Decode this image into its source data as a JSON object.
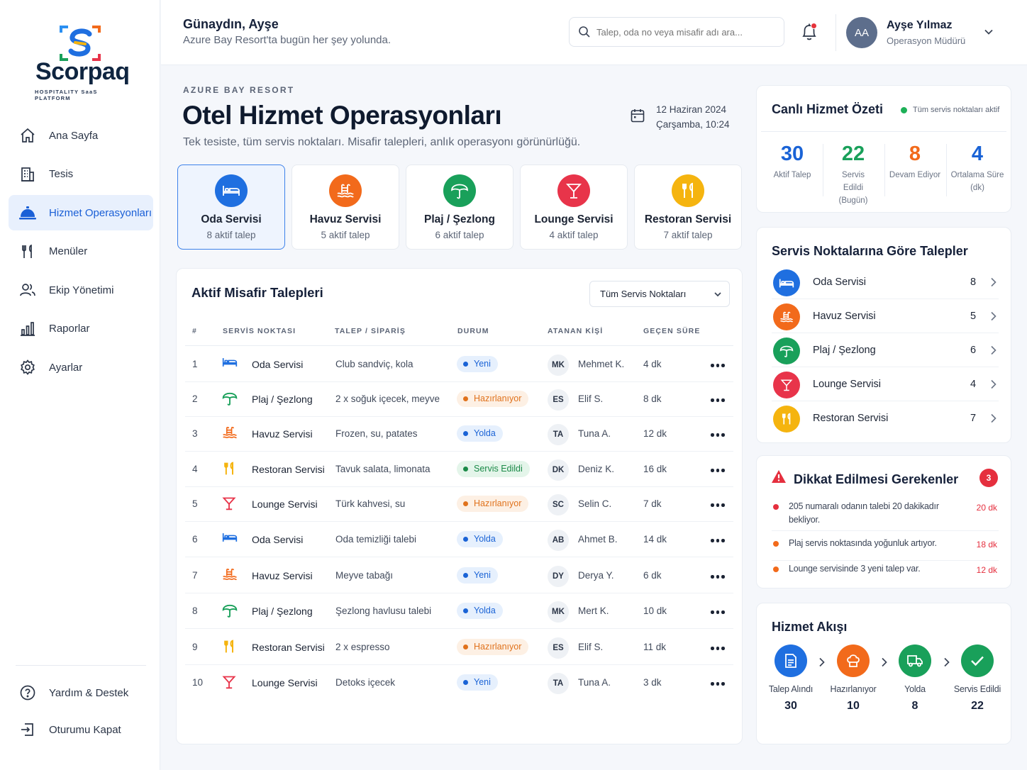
{
  "brand": {
    "name": "Scorpaq",
    "tagline": "HOSPITALITY SaaS PLATFORM"
  },
  "sidebar": {
    "items": [
      {
        "label": "Ana Sayfa",
        "icon": "home-icon"
      },
      {
        "label": "Tesis",
        "icon": "building-icon"
      },
      {
        "label": "Hizmet Operasyonları",
        "icon": "service-bell-icon",
        "active": true
      },
      {
        "label": "Menüler",
        "icon": "utensils-icon"
      },
      {
        "label": "Ekip Yönetimi",
        "icon": "team-icon"
      },
      {
        "label": "Raporlar",
        "icon": "bar-chart-icon"
      },
      {
        "label": "Ayarlar",
        "icon": "gear-icon"
      }
    ],
    "bottom": [
      {
        "label": "Yardım & Destek",
        "icon": "help-icon"
      },
      {
        "label": "Oturumu Kapat",
        "icon": "logout-icon"
      }
    ]
  },
  "header": {
    "greeting": "Günaydın, Ayşe",
    "subtitle": "Azure Bay Resort'ta bugün her şey yolunda.",
    "search_placeholder": "Talep, oda no veya misafir adı ara...",
    "user": {
      "initials": "AA",
      "name": "Ayşe Yılmaz",
      "role": "Operasyon Müdürü"
    }
  },
  "page": {
    "eyebrow": "AZURE BAY RESORT",
    "title": "Otel Hizmet Operasyonları",
    "subtitle": "Tek tesiste, tüm servis noktaları. Misafir talepleri, anlık operasyonı görünürlüğü.",
    "date": "12 Haziran 2024",
    "time": "Çarşamba, 10:24"
  },
  "service_cards": [
    {
      "name": "Oda Servisi",
      "count": "8 aktif talep",
      "color": "#1f6fe0",
      "icon": "bed-icon"
    },
    {
      "name": "Havuz Servisi",
      "count": "5 aktif talep",
      "color": "#f26a1b",
      "icon": "pool-icon"
    },
    {
      "name": "Plaj / Şezlong",
      "count": "6 aktif talep",
      "color": "#19a05a",
      "icon": "umbrella-icon"
    },
    {
      "name": "Lounge Servisi",
      "count": "4 aktif talep",
      "color": "#e8344a",
      "icon": "cocktail-icon"
    },
    {
      "name": "Restoran Servisi",
      "count": "7 aktif talep",
      "color": "#f5b40f",
      "icon": "utensils-icon"
    }
  ],
  "requests": {
    "title": "Aktif Misafir Talepleri",
    "filter": "Tüm Servis Noktaları",
    "columns": [
      "#",
      "SERVİS NOKTASI",
      "TALEP / SİPARİŞ",
      "DURUM",
      "ATANAN KİŞİ",
      "GEÇEN SÜRE"
    ],
    "rows": [
      {
        "no": "1",
        "service": "Oda Servisi",
        "svc": "room",
        "order": "Club sandviç, kola",
        "status": "Yeni",
        "st": "new",
        "initials": "MK",
        "person": "Mehmet K.",
        "time": "4 dk"
      },
      {
        "no": "2",
        "service": "Plaj / Şezlong",
        "svc": "beach",
        "order": "2 x soğuk içecek, meyve",
        "status": "Hazırlanıyor",
        "st": "prep",
        "initials": "ES",
        "person": "Elif S.",
        "time": "8 dk"
      },
      {
        "no": "3",
        "service": "Havuz Servisi",
        "svc": "pool",
        "order": "Frozen, su, patates",
        "status": "Yolda",
        "st": "road",
        "initials": "TA",
        "person": "Tuna A.",
        "time": "12 dk"
      },
      {
        "no": "4",
        "service": "Restoran Servisi",
        "svc": "rest",
        "order": "Tavuk salata, limonata",
        "status": "Servis Edildi",
        "st": "done",
        "initials": "DK",
        "person": "Deniz K.",
        "time": "16 dk"
      },
      {
        "no": "5",
        "service": "Lounge Servisi",
        "svc": "lounge",
        "order": "Türk kahvesi, su",
        "status": "Hazırlanıyor",
        "st": "prep",
        "initials": "SC",
        "person": "Selin C.",
        "time": "7 dk"
      },
      {
        "no": "6",
        "service": "Oda Servisi",
        "svc": "room",
        "order": "Oda temizliği talebi",
        "status": "Yolda",
        "st": "road",
        "initials": "AB",
        "person": "Ahmet B.",
        "time": "14 dk"
      },
      {
        "no": "7",
        "service": "Havuz Servisi",
        "svc": "pool",
        "order": "Meyve tabağı",
        "status": "Yeni",
        "st": "new",
        "initials": "DY",
        "person": "Derya Y.",
        "time": "6 dk"
      },
      {
        "no": "8",
        "service": "Plaj / Şezlong",
        "svc": "beach",
        "order": "Şezlong havlusu talebi",
        "status": "Yolda",
        "st": "road",
        "initials": "MK",
        "person": "Mert K.",
        "time": "10 dk"
      },
      {
        "no": "9",
        "service": "Restoran Servisi",
        "svc": "rest",
        "order": "2 x espresso",
        "status": "Hazırlanıyor",
        "st": "prep",
        "initials": "ES",
        "person": "Elif S.",
        "time": "11 dk"
      },
      {
        "no": "10",
        "service": "Lounge Servisi",
        "svc": "lounge",
        "order": "Detoks içecek",
        "status": "Yeni",
        "st": "new",
        "initials": "TA",
        "person": "Tuna A.",
        "time": "3 dk"
      }
    ]
  },
  "summary": {
    "title": "Canlı Hizmet Özeti",
    "live": "Tüm servis noktaları aktif",
    "stats": [
      {
        "value": "30",
        "label": "Aktif Talep",
        "color": "#1a63d6"
      },
      {
        "value": "22",
        "label": "Servis Edildi (Bugün)",
        "color": "#19a05a"
      },
      {
        "value": "8",
        "label": "Devam Ediyor",
        "color": "#f26a1b"
      },
      {
        "value": "4",
        "label": "Ortalama Süre (dk)",
        "color": "#1a63d6"
      }
    ]
  },
  "by_point": {
    "title": "Servis Noktalarına Göre Talepler",
    "rows": [
      {
        "name": "Oda Servisi",
        "count": "8"
      },
      {
        "name": "Havuz Servisi",
        "count": "5"
      },
      {
        "name": "Plaj / Şezlong",
        "count": "6"
      },
      {
        "name": "Lounge Servisi",
        "count": "4"
      },
      {
        "name": "Restoran Servisi",
        "count": "7"
      }
    ]
  },
  "alerts": {
    "title": "Dikkat Edilmesi Gerekenler",
    "count": "3",
    "items": [
      {
        "text": "205 numaralı odanın talebi 20 dakikadır bekliyor.",
        "time": "20 dk",
        "color": "#e52f3e"
      },
      {
        "text": "Plaj servis noktasında yoğunluk artıyor.",
        "time": "18 dk",
        "color": "#f26a1b"
      },
      {
        "text": "Lounge servisinde 3 yeni talep var.",
        "time": "12 dk",
        "color": "#f26a1b"
      }
    ]
  },
  "flow": {
    "title": "Hizmet Akışı",
    "steps": [
      {
        "label": "Talep Alındı",
        "value": "30",
        "color": "#1f6fe0"
      },
      {
        "label": "Hazırlanıyor",
        "value": "10",
        "color": "#f26a1b"
      },
      {
        "label": "Yolda",
        "value": "8",
        "color": "#19a05a"
      },
      {
        "label": "Servis Edildi",
        "value": "22",
        "color": "#19a05a"
      }
    ]
  }
}
